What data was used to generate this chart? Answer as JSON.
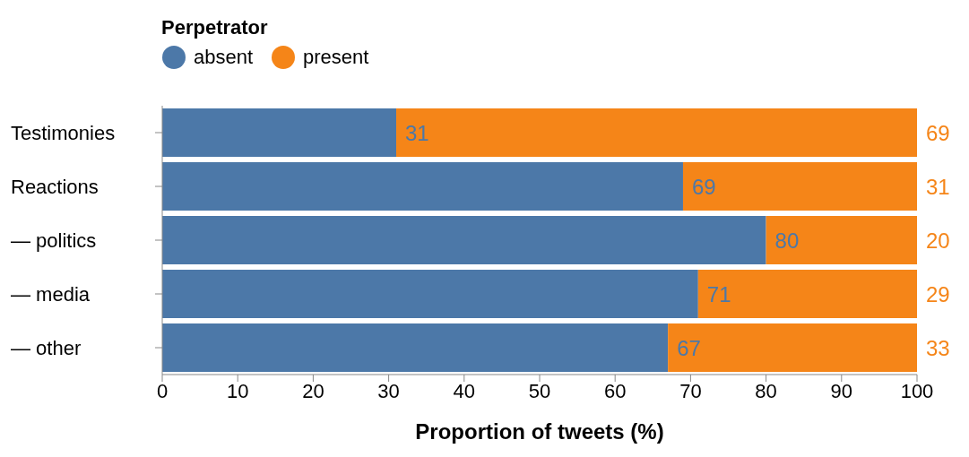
{
  "chart_data": {
    "type": "bar",
    "orientation": "horizontal",
    "stacked": true,
    "categories": [
      "Testimonies",
      "Reactions",
      "— politics",
      "— media",
      "— other"
    ],
    "series": [
      {
        "name": "absent",
        "color": "#4c78a8",
        "values": [
          31,
          69,
          80,
          71,
          67
        ]
      },
      {
        "name": "present",
        "color": "#f58518",
        "values": [
          69,
          31,
          20,
          29,
          33
        ]
      }
    ],
    "xlabel": "Proportion of tweets (%)",
    "legend_title": "Perpetrator",
    "legend": "top left",
    "data_labels": true,
    "xlim": [
      0,
      100
    ],
    "xticks": [
      0,
      10,
      20,
      30,
      40,
      50,
      60,
      70,
      80,
      90,
      100
    ]
  }
}
